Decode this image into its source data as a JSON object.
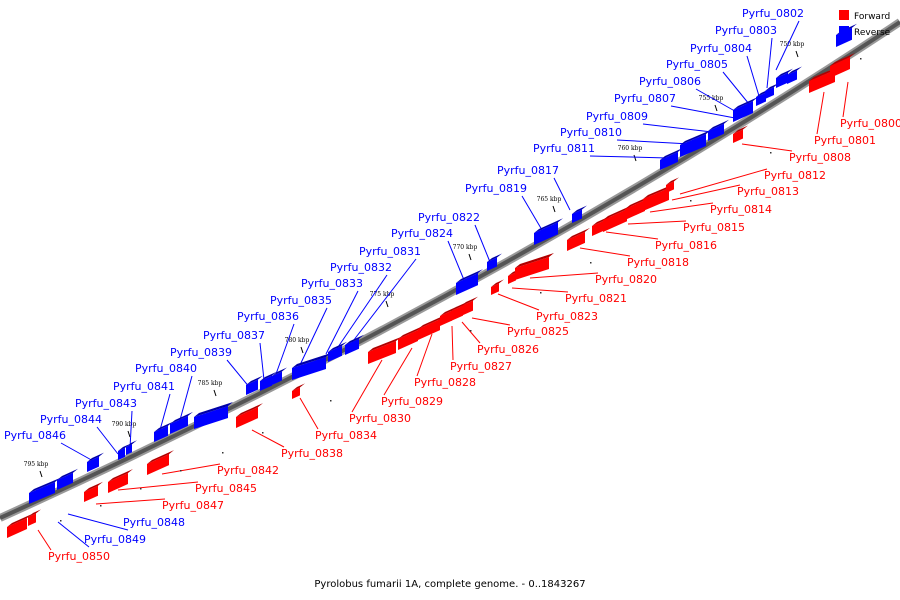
{
  "caption": "Pyrolobus fumarii 1A, complete genome. - 0..1843267",
  "legend": [
    {
      "label": "Forward",
      "color": "#ff0000"
    },
    {
      "label": "Reverse",
      "color": "#0000ff"
    }
  ],
  "colors": {
    "forward": "#ff0000",
    "forward_dark": "#b00000",
    "reverse": "#0000ff",
    "reverse_dark": "#0000a8",
    "backbone": "#555555"
  },
  "ticks": [
    "750 kbp",
    "755 kbp",
    "760 kbp",
    "765 kbp",
    "770 kbp",
    "775 kbp",
    "780 kbp",
    "785 kbp",
    "790 kbp",
    "795 kbp"
  ],
  "reverse_genes": [
    "Pyrfu_0802",
    "Pyrfu_0803",
    "Pyrfu_0804",
    "Pyrfu_0805",
    "Pyrfu_0806",
    "Pyrfu_0807",
    "Pyrfu_0809",
    "Pyrfu_0810",
    "Pyrfu_0811",
    "Pyrfu_0817",
    "Pyrfu_0819",
    "Pyrfu_0822",
    "Pyrfu_0824",
    "Pyrfu_0831",
    "Pyrfu_0832",
    "Pyrfu_0833",
    "Pyrfu_0835",
    "Pyrfu_0836",
    "Pyrfu_0837",
    "Pyrfu_0839",
    "Pyrfu_0840",
    "Pyrfu_0841",
    "Pyrfu_0843",
    "Pyrfu_0844",
    "Pyrfu_0846",
    "Pyrfu_0848",
    "Pyrfu_0849"
  ],
  "forward_genes": [
    "Pyrfu_0800",
    "Pyrfu_0801",
    "Pyrfu_0808",
    "Pyrfu_0812",
    "Pyrfu_0813",
    "Pyrfu_0814",
    "Pyrfu_0815",
    "Pyrfu_0816",
    "Pyrfu_0818",
    "Pyrfu_0820",
    "Pyrfu_0821",
    "Pyrfu_0823",
    "Pyrfu_0825",
    "Pyrfu_0826",
    "Pyrfu_0827",
    "Pyrfu_0828",
    "Pyrfu_0829",
    "Pyrfu_0830",
    "Pyrfu_0834",
    "Pyrfu_0838",
    "Pyrfu_0842",
    "Pyrfu_0845",
    "Pyrfu_0847",
    "Pyrfu_0850"
  ]
}
